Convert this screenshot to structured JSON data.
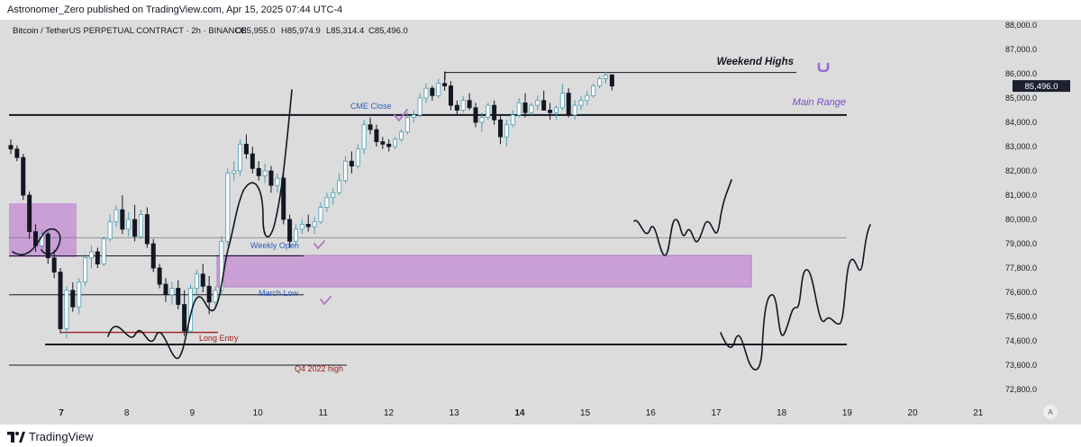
{
  "header": {
    "published_line": "Astronomer_Zero published on TradingView.com, Apr 15, 2025 07:44 UTC-4"
  },
  "footer": {
    "brand": "TradingView"
  },
  "colors": {
    "background": "#dcdcdc",
    "bull": "#4c9eb4",
    "bear": "#131722",
    "zone": "#c99fd6",
    "zone_border": "#b07cc6",
    "brand_purple": "#7a4ec2",
    "entry_red": "#a11d1d"
  },
  "chart_data": {
    "type": "candlestick",
    "title": "Bitcoin / TetherUS PERPETUAL CONTRACT · 2h · BINANCE",
    "ohlc_legend": {
      "open": "O85,955.0",
      "high": "H85,974.9",
      "low": "L85,314.4",
      "close": "C85,496.0"
    },
    "x_tick_labels": [
      "7",
      "8",
      "9",
      "10",
      "11",
      "12",
      "13",
      "14",
      "15",
      "16",
      "17",
      "18",
      "19",
      "20",
      "21"
    ],
    "bold_x_ticks": [
      "7",
      "14"
    ],
    "y_tick_labels": [
      "88,000.0",
      "87,000.0",
      "86,000.0",
      "85,000.0",
      "84,000.0",
      "83,000.0",
      "82,000.0",
      "81,000.0",
      "80,000.0",
      "79,000.0",
      "77,800.0",
      "76,600.0",
      "75,600.0",
      "74,600.0",
      "73,600.0",
      "72,800.0"
    ],
    "current_price_label": "85,496.0",
    "current_price": 85496,
    "axis_corner_label": "A",
    "annotations": {
      "weekend_highs": "Weekend Highs",
      "main_range": "Main Range",
      "cme_close": "CME Close",
      "weekly_open": "Weekly Open",
      "march_low": "March Low",
      "long_entry": "Long Entry",
      "q4_2022_high": "Q4 2022 high"
    },
    "levels": {
      "weekend_highs": 86050,
      "main_range": 84300,
      "weekly_open": 78400,
      "march_low": 76500,
      "long_entry": 74950,
      "range_low": 74450,
      "q4_2022_high": 73600,
      "thin_line": 79250
    },
    "candles": [
      [
        83050,
        83300,
        82700,
        82900
      ],
      [
        82900,
        83050,
        82400,
        82550
      ],
      [
        82550,
        82700,
        80800,
        81000
      ],
      [
        81000,
        81150,
        79200,
        79500
      ],
      [
        79500,
        79800,
        78600,
        78900
      ],
      [
        78900,
        79600,
        78700,
        79400
      ],
      [
        79400,
        79500,
        78000,
        78300
      ],
      [
        78300,
        78700,
        77300,
        77600
      ],
      [
        77600,
        77800,
        74900,
        75100
      ],
      [
        75100,
        76900,
        74700,
        76700
      ],
      [
        76700,
        77100,
        75800,
        76000
      ],
      [
        76000,
        77300,
        75700,
        77100
      ],
      [
        77100,
        78500,
        76900,
        78300
      ],
      [
        78300,
        78900,
        77800,
        78600
      ],
      [
        78600,
        78800,
        77800,
        78000
      ],
      [
        78000,
        79300,
        77900,
        79200
      ],
      [
        79200,
        80200,
        79100,
        79900
      ],
      [
        79900,
        80600,
        79700,
        80400
      ],
      [
        80400,
        81000,
        79400,
        79600
      ],
      [
        79600,
        80300,
        79300,
        80000
      ],
      [
        80000,
        80600,
        79100,
        79300
      ],
      [
        79300,
        80400,
        79200,
        80200
      ],
      [
        80200,
        80500,
        78800,
        79000
      ],
      [
        79000,
        79200,
        77600,
        77800
      ],
      [
        77800,
        78000,
        76800,
        77000
      ],
      [
        77000,
        77300,
        76200,
        76500
      ],
      [
        76500,
        77100,
        76100,
        76800
      ],
      [
        76800,
        77200,
        75900,
        76100
      ],
      [
        76100,
        76700,
        74800,
        75000
      ],
      [
        75000,
        77000,
        74900,
        76800
      ],
      [
        76800,
        77700,
        76500,
        77500
      ],
      [
        77500,
        78000,
        76600,
        76900
      ],
      [
        76900,
        77400,
        75700,
        76200
      ],
      [
        76200,
        76900,
        75900,
        76700
      ],
      [
        76700,
        79300,
        76500,
        79100
      ],
      [
        79100,
        82100,
        78900,
        81900
      ],
      [
        81900,
        82400,
        81600,
        82000
      ],
      [
        82000,
        83300,
        81800,
        83100
      ],
      [
        83100,
        83500,
        82500,
        82700
      ],
      [
        82700,
        83000,
        81900,
        82100
      ],
      [
        82100,
        82400,
        81600,
        81800
      ],
      [
        81800,
        82300,
        81500,
        82000
      ],
      [
        82000,
        82200,
        81100,
        81400
      ],
      [
        81400,
        81900,
        81100,
        81700
      ],
      [
        81700,
        81900,
        79800,
        80000
      ],
      [
        80000,
        80200,
        78800,
        79100
      ],
      [
        79100,
        79800,
        78900,
        79600
      ],
      [
        79600,
        80000,
        79400,
        79800
      ],
      [
        79800,
        80200,
        79500,
        79700
      ],
      [
        79700,
        80100,
        79400,
        79900
      ],
      [
        79900,
        80700,
        79800,
        80500
      ],
      [
        80500,
        81100,
        80300,
        80900
      ],
      [
        80900,
        81300,
        80600,
        81100
      ],
      [
        81100,
        81900,
        81000,
        81600
      ],
      [
        81600,
        82600,
        81500,
        82400
      ],
      [
        82400,
        82800,
        81900,
        82200
      ],
      [
        82200,
        83100,
        82100,
        82900
      ],
      [
        82900,
        84100,
        82700,
        83900
      ],
      [
        83900,
        84200,
        83500,
        83700
      ],
      [
        83700,
        83900,
        83000,
        83200
      ],
      [
        83200,
        83400,
        82900,
        83100
      ],
      [
        83100,
        83300,
        82800,
        83000
      ],
      [
        83000,
        83400,
        82900,
        83300
      ],
      [
        83300,
        83700,
        83200,
        83600
      ],
      [
        83600,
        84400,
        83500,
        84200
      ],
      [
        84200,
        84500,
        84000,
        84300
      ],
      [
        84300,
        85200,
        84200,
        85000
      ],
      [
        85000,
        85600,
        84800,
        85400
      ],
      [
        85400,
        85500,
        84900,
        85100
      ],
      [
        85100,
        85800,
        85000,
        85600
      ],
      [
        85600,
        86100,
        85300,
        85500
      ],
      [
        85500,
        85700,
        84500,
        84700
      ],
      [
        84700,
        84900,
        84300,
        84500
      ],
      [
        84500,
        85100,
        84400,
        84900
      ],
      [
        84900,
        85200,
        84500,
        84600
      ],
      [
        84600,
        84800,
        83800,
        84000
      ],
      [
        84000,
        84400,
        83600,
        84200
      ],
      [
        84200,
        84800,
        84100,
        84700
      ],
      [
        84700,
        84900,
        83900,
        84100
      ],
      [
        84100,
        84300,
        83100,
        83400
      ],
      [
        83400,
        84100,
        83000,
        83900
      ],
      [
        83900,
        84500,
        83800,
        84300
      ],
      [
        84300,
        85000,
        84200,
        84800
      ],
      [
        84800,
        85200,
        84200,
        84400
      ],
      [
        84400,
        84800,
        84300,
        84700
      ],
      [
        84700,
        85100,
        84500,
        84900
      ],
      [
        84900,
        85300,
        84600,
        84500
      ],
      [
        84500,
        84800,
        84100,
        84400
      ],
      [
        84400,
        84700,
        84100,
        84600
      ],
      [
        84600,
        85600,
        84500,
        85200
      ],
      [
        85200,
        85400,
        84200,
        84300
      ],
      [
        84300,
        84900,
        84100,
        84700
      ],
      [
        84700,
        85100,
        84500,
        84900
      ],
      [
        84900,
        85300,
        84700,
        85100
      ],
      [
        85100,
        85600,
        85000,
        85500
      ],
      [
        85500,
        85900,
        85400,
        85800
      ],
      [
        85800,
        86100,
        85600,
        85950
      ],
      [
        85955,
        85975,
        85314,
        85496
      ]
    ]
  }
}
